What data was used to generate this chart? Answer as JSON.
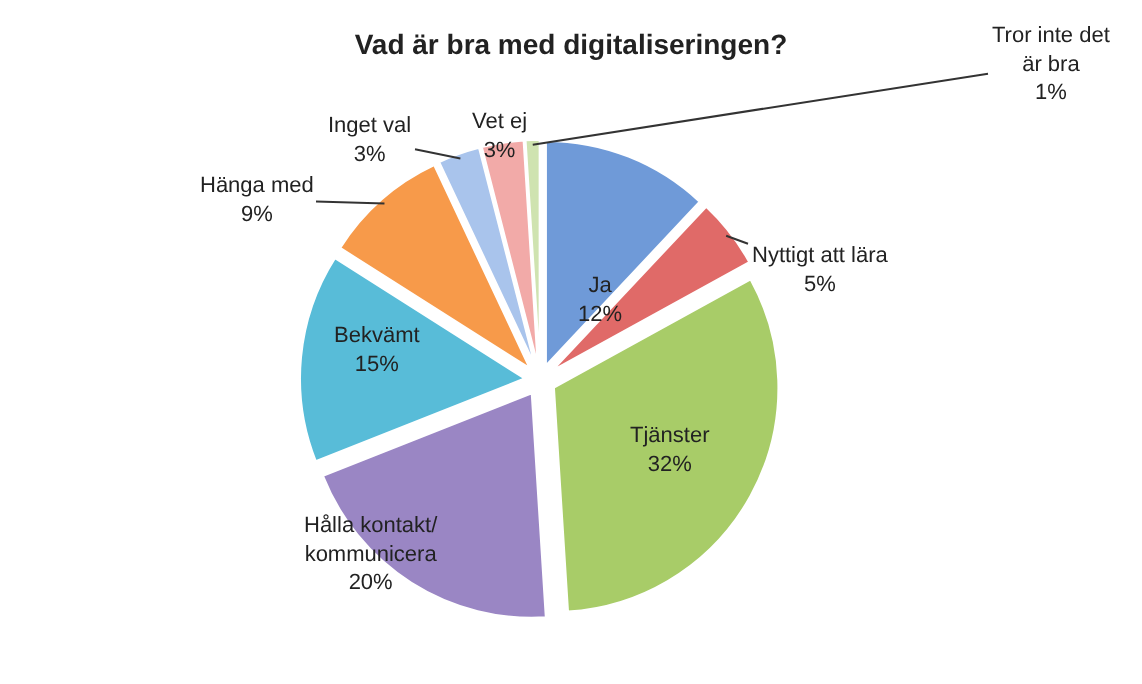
{
  "chart_data": {
    "type": "pie",
    "title": "Vad är bra med digitaliseringen?",
    "categories": [
      "Ja",
      "Nyttigt att lära",
      "Tjänster",
      "Hålla kontakt/\nkommunicera",
      "Bekvämt",
      "Hänga med",
      "Inget val",
      "Vet ej",
      "Tror inte det\när bra"
    ],
    "values": [
      12,
      5,
      32,
      20,
      15,
      9,
      3,
      3,
      1
    ],
    "value_labels": [
      "12%",
      "5%",
      "32%",
      "20%",
      "15%",
      "9%",
      "3%",
      "3%",
      "1%"
    ],
    "colors": [
      "#6f9ad8",
      "#e06a68",
      "#a8cc68",
      "#9a86c4",
      "#58bcd8",
      "#f79a4a",
      "#a9c4ec",
      "#f2aaa8",
      "#cfe3b0"
    ],
    "data_labels": true,
    "legend": false
  }
}
